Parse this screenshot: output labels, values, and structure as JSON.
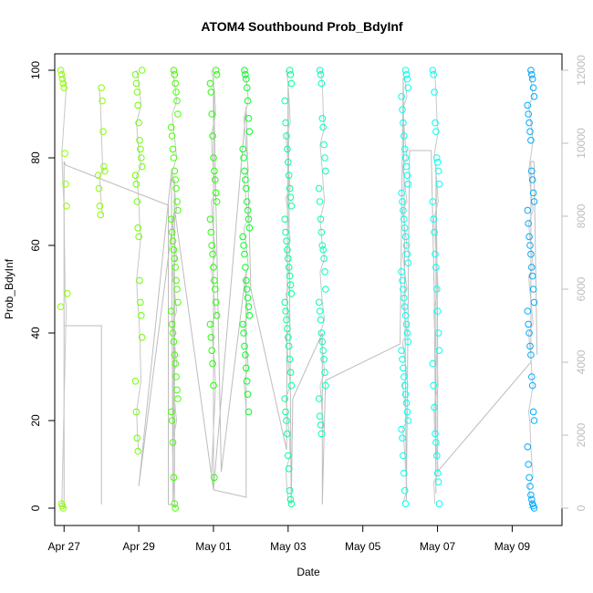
{
  "chart_data": {
    "type": "scatter",
    "title": "ATOM4 Southbound Prob_BdyInf",
    "xlabel": "Date",
    "ylabel": "Prob_BdyInf",
    "x_ticks": [
      "Apr 27",
      "Apr 29",
      "May 01",
      "May 03",
      "May 05",
      "May 07",
      "May 09"
    ],
    "x_tick_dates": [
      "2024-04-27",
      "2024-04-29",
      "2024-05-01",
      "2024-05-03",
      "2024-05-05",
      "2024-05-07",
      "2024-05-09"
    ],
    "xlim": [
      "2024-04-26T18:00",
      "2024-05-10T08:00"
    ],
    "ylim": [
      0,
      100
    ],
    "y_ticks": [
      0,
      20,
      40,
      60,
      80,
      100
    ],
    "y2_ticks": [
      0,
      2000,
      4000,
      6000,
      8000,
      10000,
      12000
    ],
    "y2lim": [
      0,
      12000
    ],
    "grid": false,
    "clusters": [
      {
        "date": "2024-04-27T00:00",
        "color": "#8cff00",
        "values": [
          100,
          99,
          98,
          97,
          96,
          81,
          74,
          69,
          49,
          46,
          1,
          0.5,
          0
        ]
      },
      {
        "date": "2024-04-28T00:00",
        "color": "#88ff00",
        "values": [
          96,
          93,
          86,
          78,
          77,
          76,
          73,
          69,
          67
        ]
      },
      {
        "date": "2024-04-29T00:00",
        "color": "#6cff00",
        "values": [
          100,
          99,
          97,
          95,
          92,
          88,
          84,
          82,
          80,
          78,
          76,
          74,
          70,
          64,
          62,
          52,
          47,
          44,
          39,
          29,
          22,
          16,
          13
        ]
      },
      {
        "date": "2024-04-29T23:00",
        "color": "#44ff00",
        "values": [
          100,
          99,
          97,
          95,
          93,
          90,
          87,
          85,
          82,
          80,
          77,
          75,
          73,
          70,
          68,
          66,
          63,
          61,
          59,
          57,
          55,
          52,
          50,
          47,
          45,
          42,
          40,
          38,
          35,
          33,
          30,
          27,
          25,
          22,
          20,
          15,
          7,
          1,
          0
        ]
      },
      {
        "date": "2024-05-01T00:00",
        "color": "#22ff00",
        "values": [
          100,
          99,
          97,
          95,
          90,
          85,
          80,
          77,
          75,
          72,
          70,
          66,
          63,
          60,
          58,
          55,
          52,
          50,
          47,
          44,
          42,
          39,
          36,
          33,
          28,
          7
        ]
      },
      {
        "date": "2024-05-01T21:00",
        "color": "#00ff22",
        "values": [
          100,
          99,
          98,
          96,
          93,
          89,
          86,
          82,
          80,
          77,
          75,
          73,
          70,
          68,
          66,
          64,
          62,
          60,
          58,
          55,
          52,
          50,
          48,
          46,
          44,
          42,
          40,
          37,
          35,
          32,
          29,
          26,
          22
        ]
      },
      {
        "date": "2024-05-03T00:00",
        "color": "#00ff99",
        "values": [
          100,
          99,
          97,
          93,
          88,
          85,
          82,
          79,
          76,
          73,
          71,
          69,
          66,
          63,
          61,
          59,
          57,
          55,
          53,
          51,
          49,
          47,
          45,
          43,
          41,
          39,
          37,
          34,
          31,
          28,
          25,
          22,
          20,
          17,
          12,
          9,
          4,
          2,
          1
        ]
      },
      {
        "date": "2024-05-03T22:00",
        "color": "#00ffbb",
        "values": [
          100,
          99,
          97,
          89,
          87,
          83,
          80,
          77,
          73,
          70,
          66,
          63,
          60,
          59,
          57,
          54,
          50,
          47,
          45,
          43,
          40,
          38,
          36,
          34,
          31,
          28,
          25,
          21,
          19,
          17
        ]
      },
      {
        "date": "2024-05-06T03:00",
        "color": "#00ffee",
        "values": [
          100,
          99,
          98,
          96,
          94,
          91,
          88,
          85,
          82,
          80,
          78,
          76,
          74,
          72,
          70,
          68,
          66,
          64,
          62,
          60,
          58,
          56,
          54,
          52,
          50,
          48,
          46,
          44,
          42,
          40,
          38,
          36,
          34,
          32,
          30,
          28,
          26,
          24,
          22,
          20,
          18,
          16,
          12,
          8,
          4,
          1
        ]
      },
      {
        "date": "2024-05-06T23:00",
        "color": "#00fff0",
        "values": [
          100,
          99,
          95,
          88,
          86,
          80,
          79,
          77,
          74,
          70,
          66,
          63,
          58,
          55,
          50,
          45,
          40,
          36,
          33,
          28,
          23,
          17,
          15,
          12,
          8,
          6,
          1
        ]
      },
      {
        "date": "2024-05-09T12:00",
        "color": "#00aaff",
        "values": [
          100,
          99,
          98,
          96,
          94,
          92,
          90,
          88,
          86,
          84,
          77,
          75,
          72,
          70,
          68,
          65,
          62,
          60,
          58,
          55,
          53,
          50,
          47,
          45,
          42,
          40,
          37,
          35,
          30,
          28,
          22,
          20,
          14,
          10,
          7,
          5,
          3,
          2,
          1,
          0.5,
          0
        ]
      }
    ],
    "secondary_line": {
      "color": "#bdbdbd",
      "y2_points": [
        [
          "2024-04-27T00:00",
          5000
        ],
        [
          "2024-04-27T00:00",
          9500
        ],
        [
          "2024-04-27T01:00",
          9400
        ],
        [
          "2024-04-29T19:00",
          8300
        ],
        [
          "2024-04-29T19:00",
          100
        ],
        [
          "2024-04-29T23:00",
          100
        ],
        [
          "2024-04-29T23:00",
          9000
        ],
        [
          "2024-04-29T22:00",
          200
        ],
        [
          "2024-04-29T21:00",
          9200
        ],
        [
          "2024-04-29T00:00",
          600
        ],
        [
          "2024-04-29T23:00",
          8200
        ],
        [
          "2024-05-01T00:00",
          500
        ],
        [
          "2024-05-01T00:00",
          11800
        ],
        [
          "2024-05-01T05:00",
          1000
        ],
        [
          "2024-05-01T21:00",
          6500
        ],
        [
          "2024-05-01T21:00",
          300
        ],
        [
          "2024-05-01T00:00",
          500
        ],
        [
          "2024-05-01T21:00",
          11000
        ],
        [
          "2024-05-02T00:00",
          6000
        ],
        [
          "2024-05-02T23:00",
          1600
        ],
        [
          "2024-05-03T00:00",
          11700
        ],
        [
          "2024-05-03T02:00",
          100
        ],
        [
          "2024-05-03T03:00",
          3000
        ],
        [
          "2024-05-03T22:00",
          4800
        ],
        [
          "2024-05-03T22:00",
          100
        ],
        [
          "2024-05-04T00:00",
          3500
        ],
        [
          "2024-05-06T00:00",
          4500
        ],
        [
          "2024-05-06T02:00",
          11800
        ],
        [
          "2024-05-06T04:00",
          200
        ],
        [
          "2024-05-06T06:00",
          9800
        ],
        [
          "2024-05-06T20:00",
          9800
        ],
        [
          "2024-05-06T22:00",
          5800
        ],
        [
          "2024-05-06T23:00",
          400
        ],
        [
          "2024-05-06T23:00",
          9400
        ],
        [
          "2024-05-07T00:00",
          5000
        ],
        [
          "2024-05-07T00:00",
          1000
        ],
        [
          "2024-05-09T12:00",
          4000
        ],
        [
          "2024-05-09T12:00",
          9500
        ],
        [
          "2024-05-09T14:00",
          9500
        ],
        [
          "2024-05-09T16:00",
          4200
        ]
      ],
      "early_box": [
        [
          "2024-04-27T00:00",
          0
        ],
        [
          "2024-04-27T00:00",
          5000
        ],
        [
          "2024-04-28T00:00",
          5000
        ],
        [
          "2024-04-28T00:00",
          100
        ]
      ]
    }
  }
}
